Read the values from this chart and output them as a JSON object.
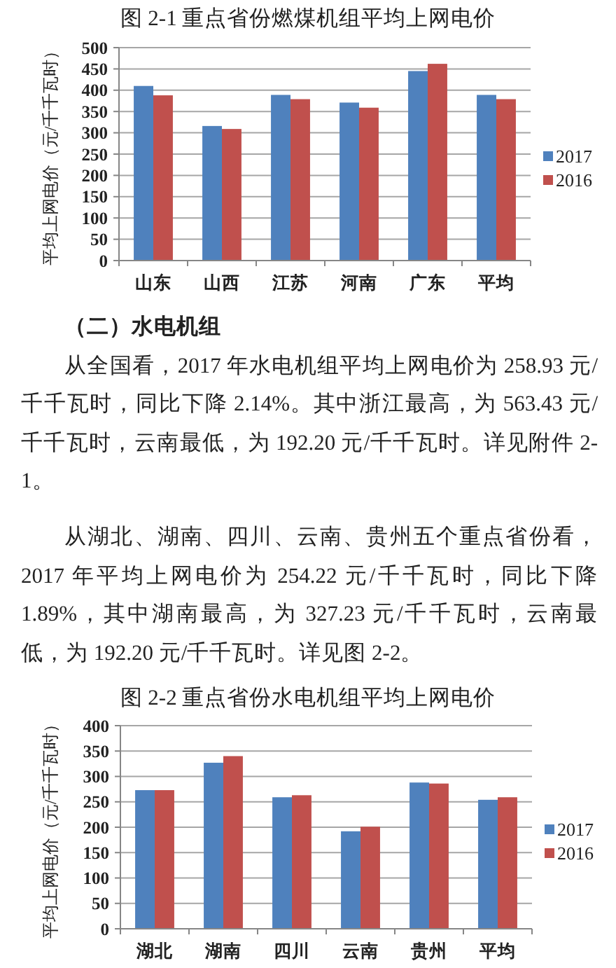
{
  "chart_data": [
    {
      "type": "bar",
      "title": "图 2-1 重点省份燃煤机组平均上网电价",
      "ylabel": "平均上网电价（元/千千瓦时）",
      "categories": [
        "山东",
        "山西",
        "江苏",
        "河南",
        "广东",
        "平均"
      ],
      "series": [
        {
          "name": "2017",
          "color": "#4f81bd",
          "values": [
            410,
            316,
            389,
            371,
            445,
            389
          ]
        },
        {
          "name": "2016",
          "color": "#c0504d",
          "values": [
            388,
            309,
            379,
            359,
            462,
            379
          ]
        }
      ],
      "ylim": [
        0,
        500
      ],
      "yticks": [
        0,
        50,
        100,
        150,
        200,
        250,
        300,
        350,
        400,
        450,
        500
      ],
      "grid": "y",
      "legend": "right"
    },
    {
      "type": "bar",
      "title": "图 2-2 重点省份水电机组平均上网电价",
      "ylabel": "平均上网电价（元/千千瓦时）",
      "categories": [
        "湖北",
        "湖南",
        "四川",
        "云南",
        "贵州",
        "平均"
      ],
      "series": [
        {
          "name": "2017",
          "color": "#4f81bd",
          "values": [
            273,
            327,
            259,
            192,
            288,
            254
          ]
        },
        {
          "name": "2016",
          "color": "#c0504d",
          "values": [
            273,
            340,
            263,
            201,
            286,
            259
          ]
        }
      ],
      "ylim": [
        0,
        400
      ],
      "yticks": [
        0,
        50,
        100,
        150,
        200,
        250,
        300,
        350,
        400
      ],
      "grid": "y",
      "legend": "right",
      "annotations": [
        "（二）水电机组",
        "从全国看，2017 年水电机组平均上网电价为 258.93 元/千千瓦时，同比下降 2.14%。其中浙江最高，为 563.43 元/千千瓦时，云南最低，为 192.20 元/千千瓦时。详见附件 2-1。",
        "从湖北、湖南、四川、云南、贵州五个重点省份看，2017 年平均上网电价为 254.22 元/千千瓦时，同比下降 1.89%，其中湖南最高，为 327.23 元/千千瓦时，云南最低，为 192.20 元/千千瓦时。详见图 2-2。"
      ]
    }
  ]
}
